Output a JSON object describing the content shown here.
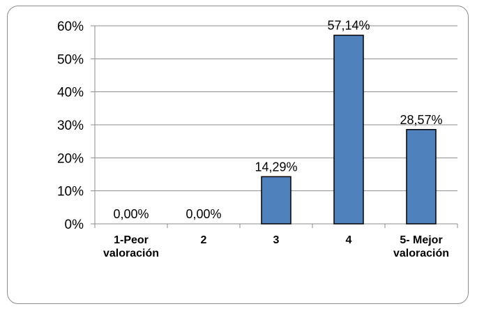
{
  "chart_data": {
    "type": "bar",
    "categories": [
      [
        "1-Peor",
        "valoración"
      ],
      [
        "2"
      ],
      [
        "3"
      ],
      [
        "4"
      ],
      [
        "5- Mejor",
        "valoración"
      ]
    ],
    "values": [
      0.0,
      0.0,
      14.29,
      57.14,
      28.57
    ],
    "data_labels": [
      "0,00%",
      "0,00%",
      "14,29%",
      "57,14%",
      "28,57%"
    ],
    "y_ticks": [
      "0%",
      "10%",
      "20%",
      "30%",
      "40%",
      "50%",
      "60%"
    ],
    "ylim": [
      0,
      60
    ],
    "grid": true,
    "legend": "none",
    "bar_color": "#4f81bd",
    "bar_border": "#000000",
    "grid_color": "#8c8c8c",
    "title": "",
    "xlabel": "",
    "ylabel": ""
  }
}
